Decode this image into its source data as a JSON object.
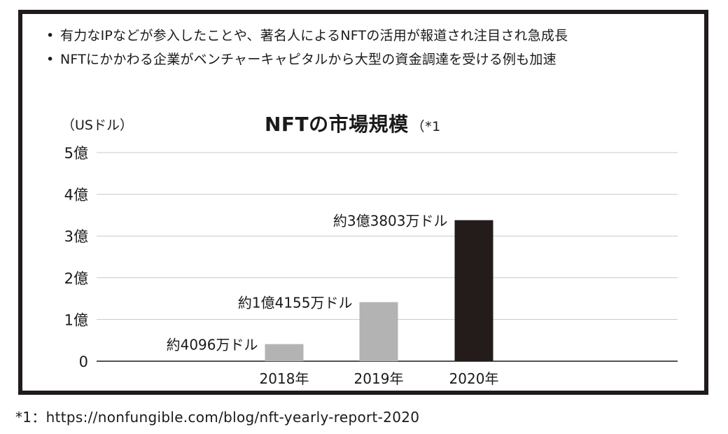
{
  "bullets": [
    "有力なIPなどが参入したことや、著名人によるNFTの活用が報道され注目され急成長",
    "NFTにかかわる企業がベンチャーキャピタルから大型の資金調達を受ける例も加速"
  ],
  "bullet_marker": "•",
  "footnote": "*1：https://nonfungible.com/blog/nft-yearly-report-2020",
  "colors": {
    "frame": "#1f1b1a",
    "bar_gray": "#b3b3b3",
    "bar_dark": "#231c1b",
    "grid": "#c8c8c8"
  },
  "chart_data": {
    "type": "bar",
    "title": "NFTの市場規模",
    "title_note": "（*1",
    "ylabel": "（USドル）",
    "categories": [
      "2018年",
      "2019年",
      "2020年"
    ],
    "values": [
      0.4096,
      1.4155,
      3.3803
    ],
    "value_labels": [
      "約4096万ドル",
      "約1億4155万ドル",
      "約3億3803万ドル"
    ],
    "bar_colors": [
      "#b3b3b3",
      "#b3b3b3",
      "#231c1b"
    ],
    "ylim": [
      0,
      5
    ],
    "yticks": [
      0,
      1,
      2,
      3,
      4,
      5
    ],
    "ytick_labels": [
      "0",
      "1億",
      "2億",
      "3億",
      "4億",
      "5億"
    ],
    "grid": true
  }
}
